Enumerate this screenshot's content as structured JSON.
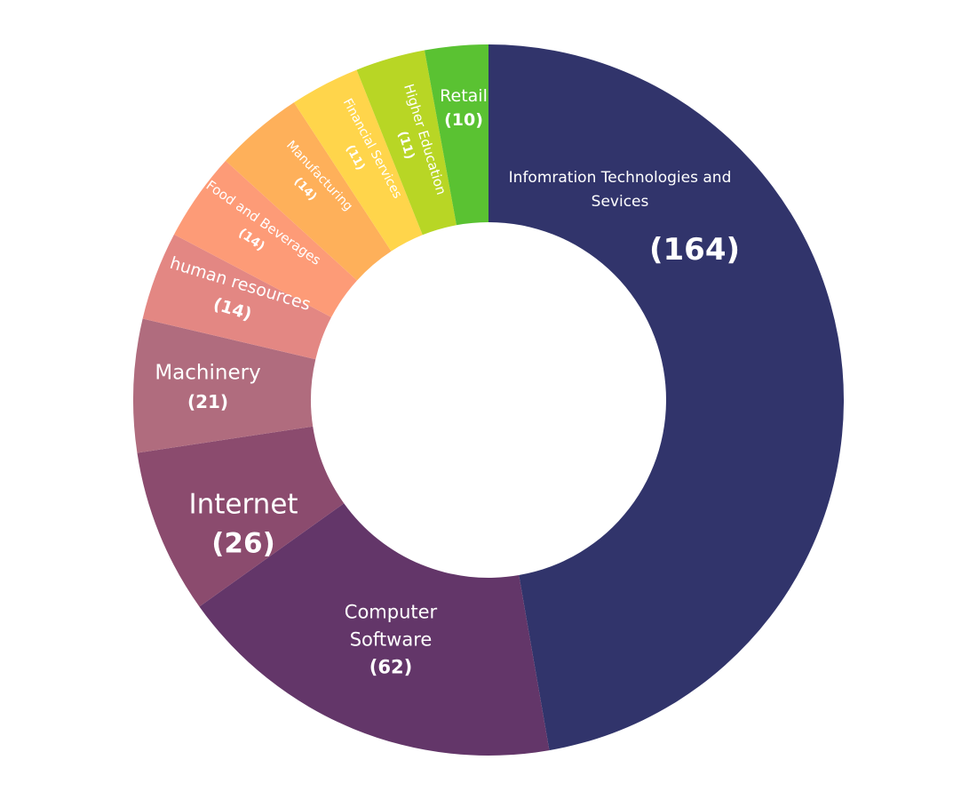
{
  "chart_data": {
    "type": "pie",
    "style": "donut",
    "title": "",
    "legend": "none",
    "slices": [
      {
        "label": "Infomration Technologies and Sevices",
        "value": 164,
        "value_label": "(164)",
        "color": "#31346b"
      },
      {
        "label": "Computer Software",
        "value": 62,
        "value_label": "(62)",
        "color": "#633669"
      },
      {
        "label": "Internet",
        "value": 26,
        "value_label": "(26)",
        "color": "#8b4b6e"
      },
      {
        "label": "Machinery",
        "value": 21,
        "value_label": "(21)",
        "color": "#b06c7e"
      },
      {
        "label": "human resources",
        "value": 14,
        "value_label": "(14)",
        "color": "#e38783"
      },
      {
        "label": "Food and Beverages",
        "value": 14,
        "value_label": "(14)",
        "color": "#fd9b77"
      },
      {
        "label": "Manufacturing",
        "value": 14,
        "value_label": "(14)",
        "color": "#feb05a"
      },
      {
        "label": "Financial Services",
        "value": 11,
        "value_label": "(11)",
        "color": "#ffd54b"
      },
      {
        "label": "Higher Education",
        "value": 11,
        "value_label": "(11)",
        "color": "#b8d625"
      },
      {
        "label": "Retail",
        "value": 10,
        "value_label": "(10)",
        "color": "#5ac232"
      }
    ]
  }
}
